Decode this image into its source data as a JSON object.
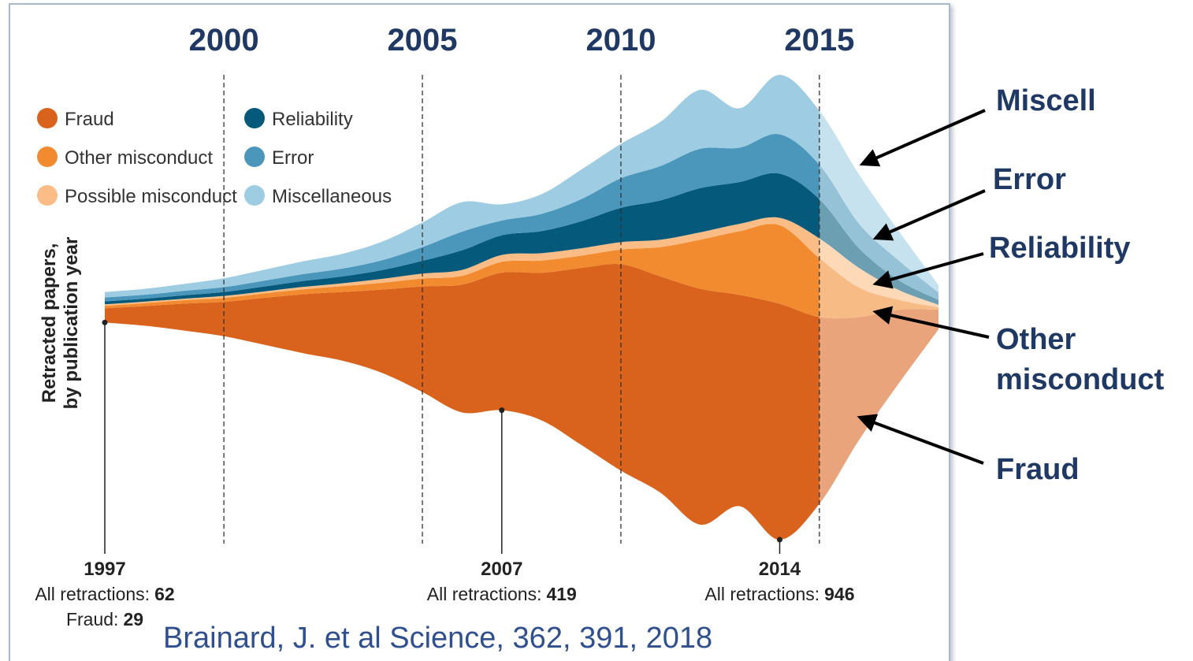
{
  "chart_data": {
    "type": "streamgraph",
    "x": [
      1997,
      1998,
      1999,
      2000,
      2001,
      2002,
      2003,
      2004,
      2005,
      2006,
      2007,
      2008,
      2009,
      2010,
      2011,
      2012,
      2013,
      2014,
      2015,
      2016,
      2017,
      2018
    ],
    "xlim": [
      1997,
      2018
    ],
    "xticks": [
      2000,
      2005,
      2010,
      2015
    ],
    "ylabel": [
      "Retracted papers,",
      "by publication year"
    ],
    "series": [
      {
        "name": "Fraud",
        "color": "#d9621c",
        "values": [
          29,
          40,
          55,
          70,
          95,
          120,
          140,
          170,
          215,
          260,
          280,
          300,
          360,
          420,
          440,
          480,
          430,
          480,
          380,
          250,
          150,
          40
        ]
      },
      {
        "name": "Other misconduct",
        "color": "#f28a30",
        "values": [
          5,
          6,
          7,
          8,
          9,
          10,
          12,
          14,
          16,
          18,
          22,
          25,
          25,
          30,
          60,
          100,
          130,
          160,
          120,
          60,
          20,
          5
        ]
      },
      {
        "name": "Possible misconduct",
        "color": "#fbbd85",
        "values": [
          3,
          3,
          3,
          4,
          4,
          5,
          6,
          8,
          10,
          12,
          14,
          15,
          15,
          15,
          15,
          15,
          15,
          15,
          40,
          40,
          20,
          5
        ]
      },
      {
        "name": "Reliability",
        "color": "#055a7c",
        "values": [
          6,
          6,
          7,
          8,
          10,
          12,
          14,
          18,
          26,
          40,
          40,
          45,
          55,
          70,
          80,
          90,
          85,
          90,
          80,
          40,
          20,
          10
        ]
      },
      {
        "name": "Error",
        "color": "#4a97bb",
        "values": [
          8,
          8,
          9,
          10,
          12,
          14,
          16,
          20,
          28,
          38,
          30,
          35,
          45,
          60,
          70,
          80,
          70,
          80,
          70,
          50,
          40,
          15
        ]
      },
      {
        "name": "Miscellaneous",
        "color": "#9ecde3",
        "values": [
          11,
          12,
          14,
          18,
          22,
          26,
          30,
          38,
          50,
          60,
          33,
          40,
          60,
          70,
          90,
          120,
          80,
          121,
          110,
          100,
          60,
          15
        ]
      }
    ],
    "annotations": [
      {
        "x": 1997,
        "label": "All retractions:",
        "total": 62,
        "fraud_label": "Fraud:",
        "fraud": 29
      },
      {
        "x": 2007,
        "label": "All retractions:",
        "total": 419
      },
      {
        "x": 2014,
        "label": "All retractions:",
        "total": 946
      }
    ],
    "callouts": [
      {
        "lines": [
          "Miscell"
        ]
      },
      {
        "lines": [
          "Error"
        ]
      },
      {
        "lines": [
          "Reliability"
        ]
      },
      {
        "lines": [
          "Other",
          "misconduct"
        ]
      },
      {
        "lines": [
          "Fraud"
        ]
      }
    ],
    "source": "Brainard, J. et al Science, 362, 391, 2018"
  }
}
